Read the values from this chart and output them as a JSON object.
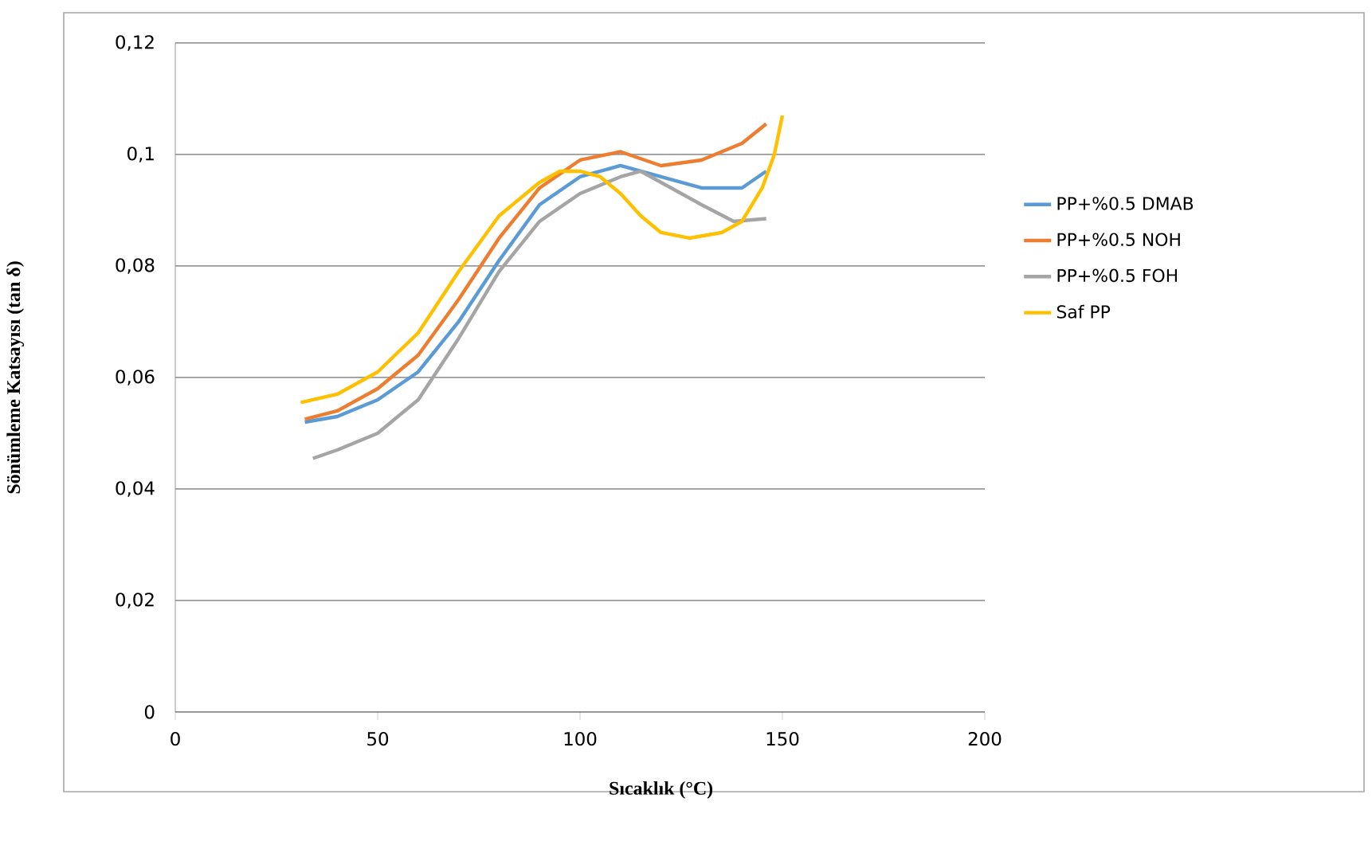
{
  "chart_data": {
    "type": "line",
    "xlabel": "Sıcaklık (°C)",
    "ylabel": "Sönümleme Katsayısı  (tan δ)",
    "xlim": [
      0,
      200
    ],
    "xticks": [
      0,
      50,
      100,
      150,
      200
    ],
    "ylim": [
      0,
      0.12
    ],
    "yticks": [
      0,
      {
        "value": 0.02,
        "label": "0,02"
      },
      {
        "value": 0.04,
        "label": "0,04"
      },
      {
        "value": 0.06,
        "label": "0,06"
      },
      {
        "value": 0.08,
        "label": "0,08"
      },
      {
        "value": 0.1,
        "label": "0,1"
      },
      {
        "value": 0.12,
        "label": "0,12"
      }
    ],
    "grid": "y",
    "legend": "right",
    "marker": "none",
    "series": [
      {
        "name": "PP+%0.5 DMAB",
        "color": "#5b9bd5",
        "x": [
          32,
          40,
          50,
          60,
          70,
          80,
          90,
          100,
          110,
          120,
          130,
          140,
          146
        ],
        "values": [
          0.052,
          0.053,
          0.056,
          0.061,
          0.07,
          0.081,
          0.091,
          0.096,
          0.098,
          0.096,
          0.094,
          0.094,
          0.097
        ]
      },
      {
        "name": "PP+%0.5 NOH",
        "color": "#ed7d31",
        "x": [
          32,
          40,
          50,
          60,
          70,
          80,
          90,
          100,
          110,
          120,
          130,
          140,
          146
        ],
        "values": [
          0.0525,
          0.054,
          0.058,
          0.064,
          0.074,
          0.085,
          0.094,
          0.099,
          0.1005,
          0.098,
          0.099,
          0.102,
          0.1055
        ]
      },
      {
        "name": "PP+%0.5 FOH",
        "color": "#a5a5a5",
        "x": [
          34,
          40,
          50,
          60,
          70,
          80,
          90,
          100,
          110,
          115,
          120,
          130,
          138,
          146
        ],
        "values": [
          0.0455,
          0.047,
          0.05,
          0.056,
          0.067,
          0.079,
          0.088,
          0.093,
          0.096,
          0.097,
          0.095,
          0.091,
          0.088,
          0.0885
        ]
      },
      {
        "name": "Saf PP",
        "color": "#ffc000",
        "x": [
          31,
          40,
          50,
          60,
          70,
          80,
          90,
          95,
          100,
          105,
          110,
          115,
          120,
          127,
          135,
          140,
          145,
          148,
          150
        ],
        "values": [
          0.0555,
          0.057,
          0.061,
          0.068,
          0.079,
          0.089,
          0.095,
          0.097,
          0.097,
          0.096,
          0.093,
          0.089,
          0.086,
          0.085,
          0.086,
          0.088,
          0.094,
          0.1,
          0.107
        ]
      }
    ]
  }
}
